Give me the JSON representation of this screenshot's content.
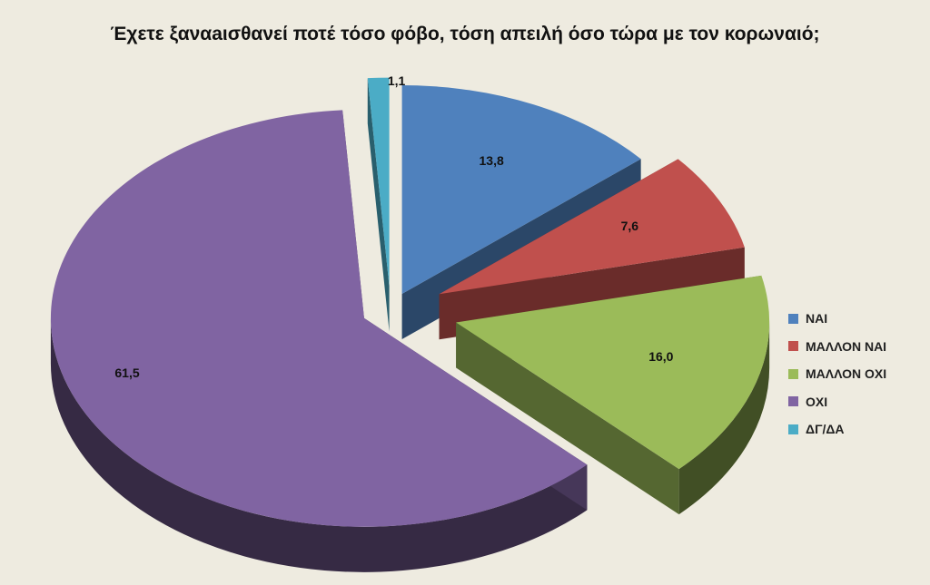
{
  "chart_data": {
    "type": "pie",
    "title": "Έχετε ξαναaισθανεί ποτέ τόσο φόβο, τόση απειλή όσο τώρα με τον κορωναιό;",
    "categories": [
      "ΝΑΙ",
      "ΜΑΛΛΟΝ ΝΑΙ",
      "ΜΑΛΛΟΝ ΟΧΙ",
      "ΟΧΙ",
      "ΔΓ/ΔΑ"
    ],
    "values": [
      13.8,
      7.6,
      16.0,
      61.5,
      1.1
    ],
    "data_labels": [
      "13,8",
      "7,6",
      "16,0",
      "61,5",
      "1,1"
    ],
    "colors": [
      "#4f81bd",
      "#c0504d",
      "#9bbb59",
      "#8064a2",
      "#4bacc6"
    ],
    "legend_position": "right",
    "style": "3d-exploded"
  }
}
